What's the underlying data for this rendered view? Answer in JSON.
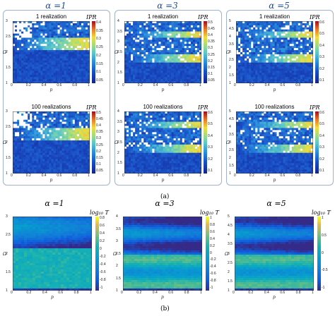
{
  "figure": {
    "label_a": "(a)",
    "label_b": "(b)",
    "ipr_label": "IPR",
    "y_axis_label": "Ω",
    "x_axis_label": "p",
    "log_label": "log₁₀ T"
  },
  "groups_a": [
    {
      "alpha": "α =1",
      "top": "1 realization",
      "bottom": "100 realizations"
    },
    {
      "alpha": "α =3",
      "top": "1 realization",
      "bottom": "100 realizations"
    },
    {
      "alpha": "α =5",
      "top": "1 realization",
      "bottom": "100 realizations"
    }
  ],
  "panels_b": [
    {
      "alpha": "α =1"
    },
    {
      "alpha": "α =3"
    },
    {
      "alpha": "α =5"
    }
  ],
  "chart_data": [
    {
      "type": "heatmap",
      "panel": "a",
      "alpha": 1,
      "title": "1 realization",
      "xlabel": "p",
      "ylabel": "Ω",
      "colorbar_label": "IPR",
      "xlim": [
        0,
        1
      ],
      "ylim": [
        1,
        3
      ],
      "x_ticks": [
        "0",
        "0.2",
        "0.4",
        "0.6",
        "0.8",
        "1"
      ],
      "y_ticks": [
        "1",
        "1.5",
        "2",
        "2.5",
        "3"
      ],
      "cb_ticks": [
        "0.4",
        "0.35",
        "0.3",
        "0.25",
        "0.2",
        "0.15",
        "0.1",
        "0.05"
      ]
    },
    {
      "type": "heatmap",
      "panel": "a",
      "alpha": 1,
      "title": "100 realizations",
      "xlabel": "p",
      "ylabel": "Ω",
      "colorbar_label": "IPR",
      "xlim": [
        0,
        1
      ],
      "ylim": [
        1,
        3
      ],
      "x_ticks": [
        "0",
        "0.2",
        "0.4",
        "0.6",
        "0.8",
        "1"
      ],
      "y_ticks": [
        "1",
        "1.5",
        "2",
        "2.5",
        "3"
      ],
      "cb_ticks": [
        "0.5",
        "0.45",
        "0.4",
        "0.35",
        "0.3",
        "0.25",
        "0.2",
        "0.15",
        "0.1",
        "0.05"
      ]
    },
    {
      "type": "heatmap",
      "panel": "a",
      "alpha": 3,
      "title": "1 realization",
      "xlabel": "p",
      "ylabel": "Ω",
      "colorbar_label": "IPR",
      "xlim": [
        0,
        1
      ],
      "ylim": [
        1,
        4
      ],
      "x_ticks": [
        "0",
        "0.2",
        "0.4",
        "0.6",
        "0.8",
        "1"
      ],
      "y_ticks": [
        "1",
        "1.5",
        "2",
        "2.5",
        "3",
        "3.5",
        "4"
      ],
      "cb_ticks": [
        "0.5",
        "0.45",
        "0.4",
        "0.35",
        "0.3",
        "0.25",
        "0.2",
        "0.15",
        "0.1",
        "0.05"
      ]
    },
    {
      "type": "heatmap",
      "panel": "a",
      "alpha": 3,
      "title": "100 realizations",
      "xlabel": "p",
      "ylabel": "Ω",
      "colorbar_label": "IPR",
      "xlim": [
        0,
        1
      ],
      "ylim": [
        1,
        4
      ],
      "x_ticks": [
        "0",
        "0.2",
        "0.4",
        "0.6",
        "0.8",
        "1"
      ],
      "y_ticks": [
        "1",
        "1.5",
        "2",
        "2.5",
        "3",
        "3.5",
        "4"
      ],
      "cb_ticks": [
        "0.6",
        "0.5",
        "0.4",
        "0.3",
        "0.2",
        "0.1"
      ]
    },
    {
      "type": "heatmap",
      "panel": "a",
      "alpha": 5,
      "title": "1 realization",
      "xlabel": "p",
      "ylabel": "Ω",
      "colorbar_label": "IPR",
      "xlim": [
        0,
        1
      ],
      "ylim": [
        1,
        5
      ],
      "x_ticks": [
        "0",
        "0.2",
        "0.4",
        "0.6",
        "0.8",
        "1"
      ],
      "y_ticks": [
        "1",
        "1.5",
        "2",
        "2.5",
        "3",
        "3.5",
        "4",
        "4.5",
        "5"
      ],
      "cb_ticks": [
        "0.6",
        "0.5",
        "0.4",
        "0.3",
        "0.2",
        "0.1"
      ]
    },
    {
      "type": "heatmap",
      "panel": "a",
      "alpha": 5,
      "title": "100 realizations",
      "xlabel": "p",
      "ylabel": "Ω",
      "colorbar_label": "IPR",
      "xlim": [
        0,
        1
      ],
      "ylim": [
        1,
        5
      ],
      "x_ticks": [
        "0",
        "0.2",
        "0.4",
        "0.6",
        "0.8",
        "1"
      ],
      "y_ticks": [
        "1",
        "1.5",
        "2",
        "2.5",
        "3",
        "3.5",
        "4",
        "4.5",
        "5"
      ],
      "cb_ticks": [
        "0.6",
        "0.5",
        "0.4",
        "0.3",
        "0.2",
        "0.1"
      ]
    },
    {
      "type": "heatmap",
      "panel": "b",
      "alpha": 1,
      "xlabel": "p",
      "ylabel": "Ω",
      "colorbar_label": "log₁₀ T",
      "xlim": [
        0,
        1
      ],
      "ylim": [
        1,
        3
      ],
      "x_ticks": [
        "0",
        "0.2",
        "0.4",
        "0.6",
        "0.8",
        "1"
      ],
      "y_ticks": [
        "1",
        "1.5",
        "2",
        "2.5",
        "3"
      ],
      "cb_ticks": [
        "0.8",
        "0.6",
        "0.4",
        "0.2",
        "0",
        "-0.2",
        "-0.4",
        "-0.6",
        "-0.8",
        "-1"
      ]
    },
    {
      "type": "heatmap",
      "panel": "b",
      "alpha": 3,
      "xlabel": "p",
      "ylabel": "Ω",
      "colorbar_label": "log₁₀ T",
      "xlim": [
        0,
        1
      ],
      "ylim": [
        1,
        4
      ],
      "x_ticks": [
        "0",
        "0.2",
        "0.4",
        "0.6",
        "0.8",
        "1"
      ],
      "y_ticks": [
        "1",
        "1.5",
        "2",
        "2.5",
        "3",
        "3.5",
        "4"
      ],
      "cb_ticks": [
        "1",
        "0.8",
        "0.6",
        "0.4",
        "0.2",
        "0",
        "-0.2",
        "-0.4",
        "-0.6",
        "-0.8",
        "-1"
      ]
    },
    {
      "type": "heatmap",
      "panel": "b",
      "alpha": 5,
      "xlabel": "p",
      "ylabel": "Ω",
      "colorbar_label": "log₁₀ T",
      "xlim": [
        0,
        1
      ],
      "ylim": [
        1,
        5
      ],
      "x_ticks": [
        "0",
        "0.2",
        "0.4",
        "0.6",
        "0.8",
        "1"
      ],
      "y_ticks": [
        "1",
        "1.5",
        "2",
        "2.5",
        "3",
        "3.5",
        "4",
        "4.5",
        "5"
      ],
      "cb_ticks": [
        "1",
        "0.5",
        "0",
        "-0.5",
        "-1"
      ]
    }
  ]
}
